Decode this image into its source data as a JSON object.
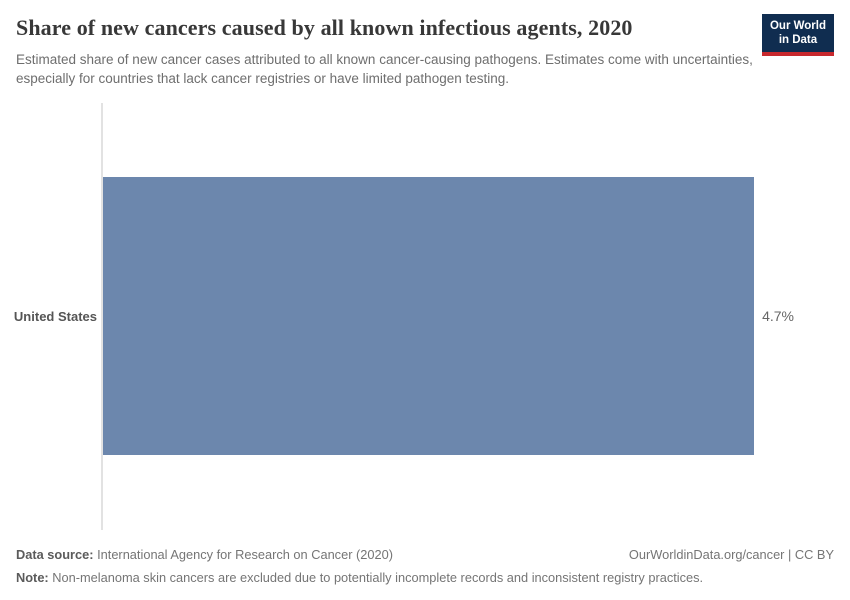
{
  "header": {
    "title": "Share of new cancers caused by all known infectious agents, 2020",
    "subtitle": "Estimated share of new cancer cases attributed to all known cancer-causing pathogens. Estimates come with uncertainties, especially for countries that lack cancer registries or have limited pathogen testing.",
    "logo": {
      "line1": "Our World",
      "line2": "in Data",
      "bg_color": "#102d50",
      "accent_color": "#c8282d"
    }
  },
  "chart_data": {
    "type": "bar",
    "orientation": "horizontal",
    "title": "Share of new cancers caused by all known infectious agents, 2020",
    "categories": [
      "United States"
    ],
    "values": [
      4.7
    ],
    "value_labels": [
      "4.7%"
    ],
    "unit": "%",
    "xlim": [
      0,
      4.7
    ],
    "bar_color": "#6c87ad",
    "grid": false,
    "legend": false
  },
  "footer": {
    "data_source_label": "Data source:",
    "data_source_text": " International Agency for Research on Cancer (2020)",
    "link": "OurWorldinData.org/cancer | CC BY",
    "note_label": "Note:",
    "note_text": " Non-melanoma skin cancers are excluded due to potentially incomplete records and inconsistent registry practices."
  }
}
